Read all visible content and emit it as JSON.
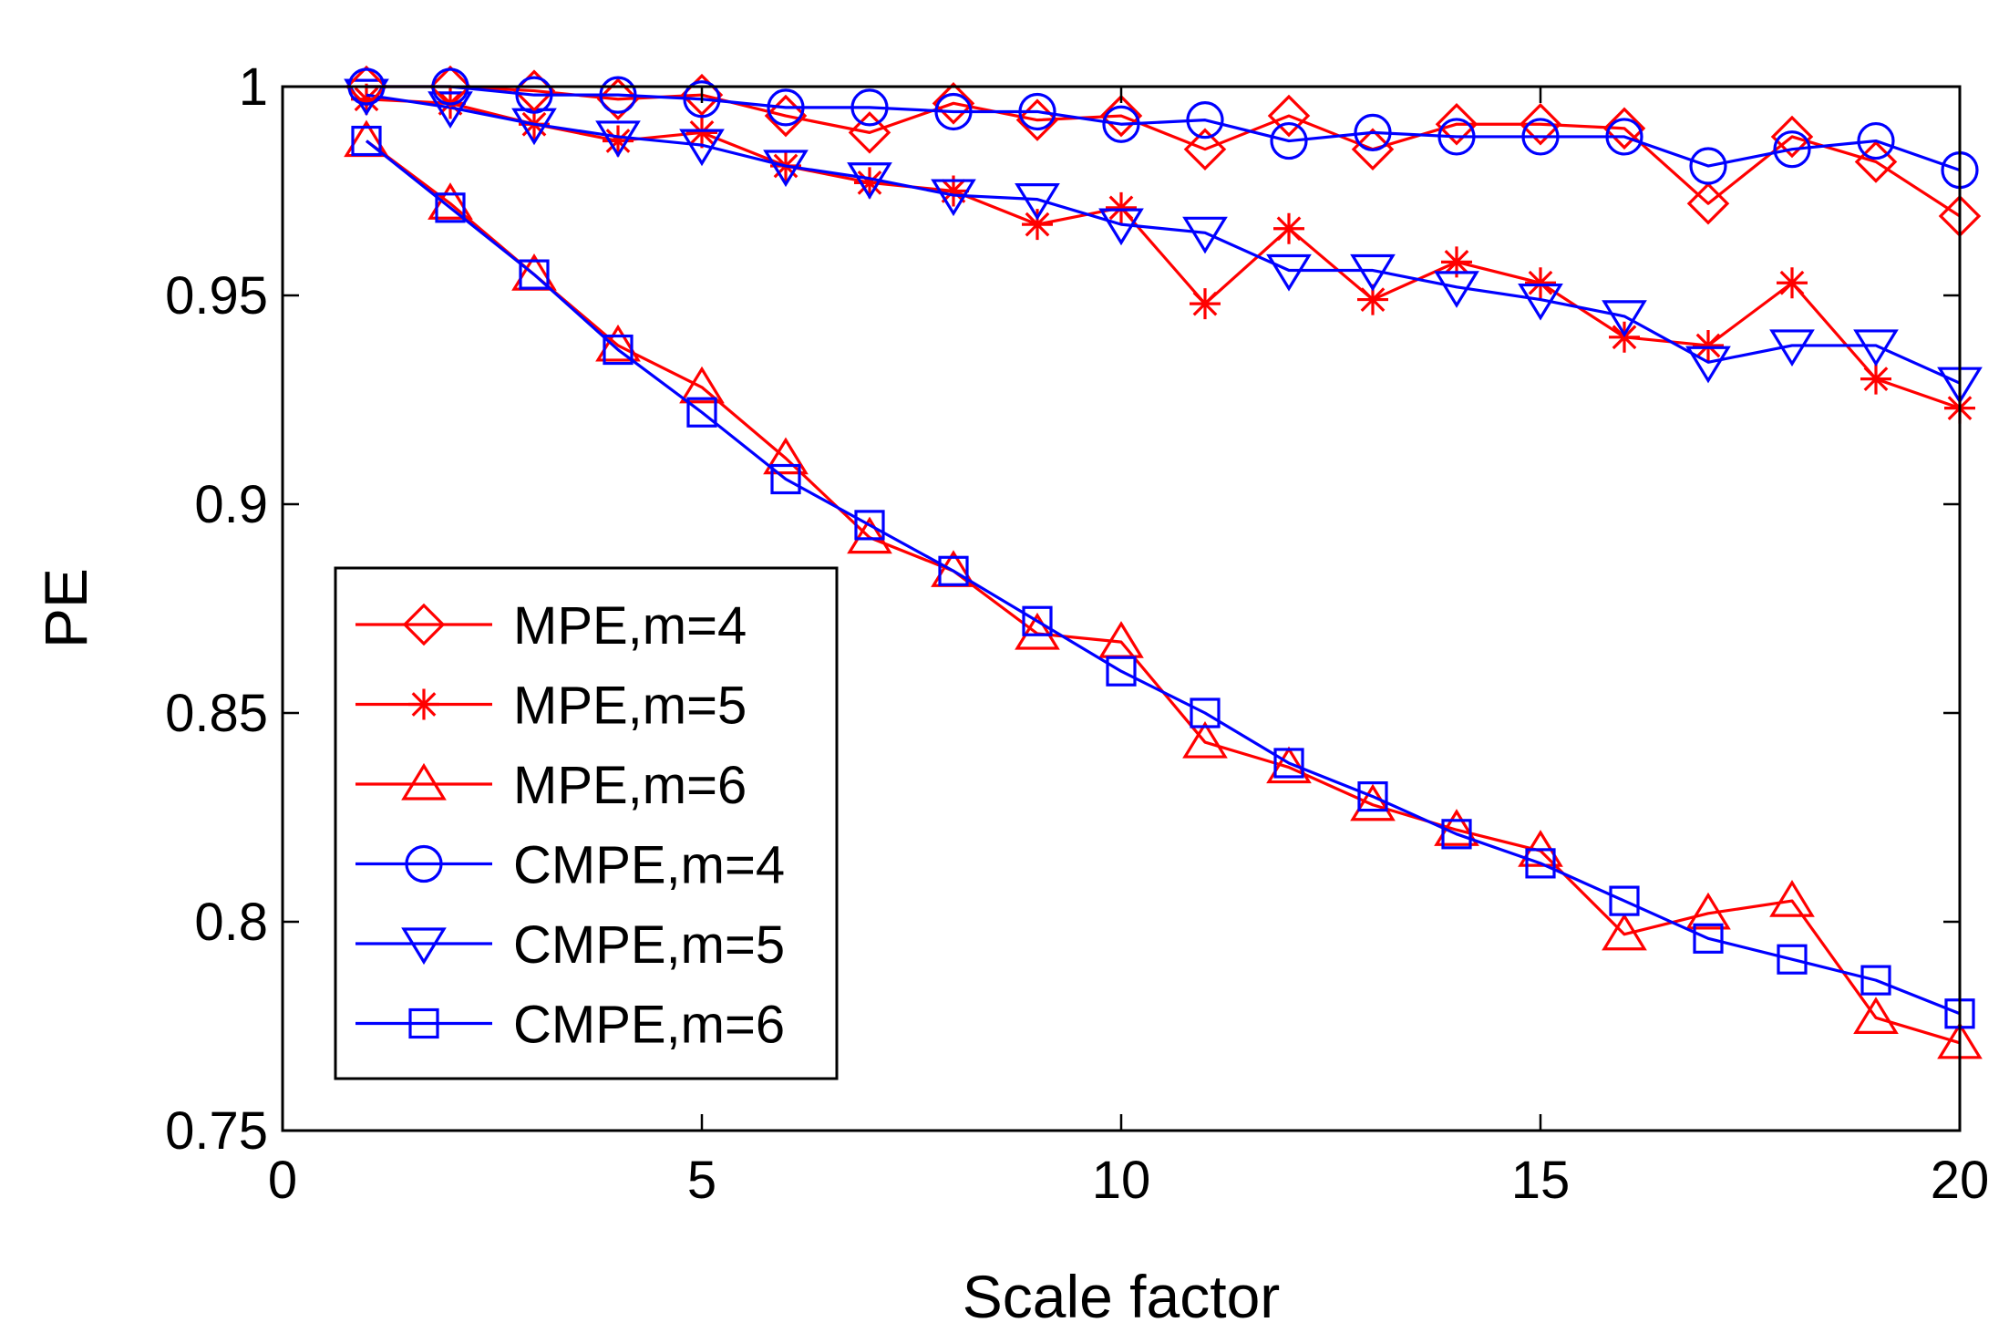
{
  "chart_data": {
    "type": "line",
    "title": "",
    "xlabel": "Scale factor",
    "ylabel": "PE",
    "xlim": [
      0,
      20
    ],
    "ylim": [
      0.75,
      1
    ],
    "xticks": [
      0,
      5,
      10,
      15,
      20
    ],
    "xtick_labels": [
      "0",
      "5",
      "10",
      "15",
      "20"
    ],
    "yticks": [
      0.75,
      0.8,
      0.85,
      0.9,
      0.95,
      1
    ],
    "ytick_labels": [
      "0.75",
      "0.8",
      "0.85",
      "0.9",
      "0.95",
      "1"
    ],
    "grid": false,
    "legend_position": "bottom-left",
    "x": [
      1,
      2,
      3,
      4,
      5,
      6,
      7,
      8,
      9,
      10,
      11,
      12,
      13,
      14,
      15,
      16,
      17,
      18,
      19,
      20
    ],
    "series": [
      {
        "name": "MPE,m=4",
        "color": "#ff0000",
        "marker": "diamond",
        "values": [
          1.0,
          1.0,
          0.999,
          0.997,
          0.998,
          0.993,
          0.989,
          0.996,
          0.992,
          0.993,
          0.985,
          0.993,
          0.985,
          0.991,
          0.991,
          0.99,
          0.972,
          0.988,
          0.982,
          0.969
        ]
      },
      {
        "name": "MPE,m=5",
        "color": "#ff0000",
        "marker": "asterisk",
        "values": [
          0.997,
          0.996,
          0.991,
          0.987,
          0.989,
          0.981,
          0.977,
          0.975,
          0.967,
          0.971,
          0.948,
          0.966,
          0.949,
          0.958,
          0.953,
          0.94,
          0.938,
          0.953,
          0.93,
          0.923
        ]
      },
      {
        "name": "MPE,m=6",
        "color": "#ff0000",
        "marker": "triangle-up",
        "values": [
          0.987,
          0.972,
          0.955,
          0.938,
          0.928,
          0.911,
          0.892,
          0.884,
          0.869,
          0.867,
          0.843,
          0.837,
          0.828,
          0.822,
          0.817,
          0.797,
          0.802,
          0.805,
          0.777,
          0.771
        ]
      },
      {
        "name": "CMPE,m=4",
        "color": "#0000ff",
        "marker": "circle",
        "values": [
          1.0,
          1.0,
          0.998,
          0.998,
          0.997,
          0.995,
          0.995,
          0.994,
          0.994,
          0.991,
          0.992,
          0.987,
          0.989,
          0.988,
          0.988,
          0.988,
          0.981,
          0.985,
          0.987,
          0.98
        ]
      },
      {
        "name": "CMPE,m=5",
        "color": "#0000ff",
        "marker": "triangle-down",
        "values": [
          0.998,
          0.995,
          0.991,
          0.988,
          0.986,
          0.981,
          0.978,
          0.974,
          0.973,
          0.967,
          0.965,
          0.956,
          0.956,
          0.952,
          0.949,
          0.945,
          0.934,
          0.938,
          0.938,
          0.929
        ]
      },
      {
        "name": "CMPE,m=6",
        "color": "#0000ff",
        "marker": "square",
        "values": [
          0.987,
          0.971,
          0.955,
          0.937,
          0.922,
          0.906,
          0.895,
          0.884,
          0.872,
          0.86,
          0.85,
          0.838,
          0.83,
          0.821,
          0.814,
          0.805,
          0.796,
          0.791,
          0.786,
          0.778
        ]
      }
    ]
  }
}
